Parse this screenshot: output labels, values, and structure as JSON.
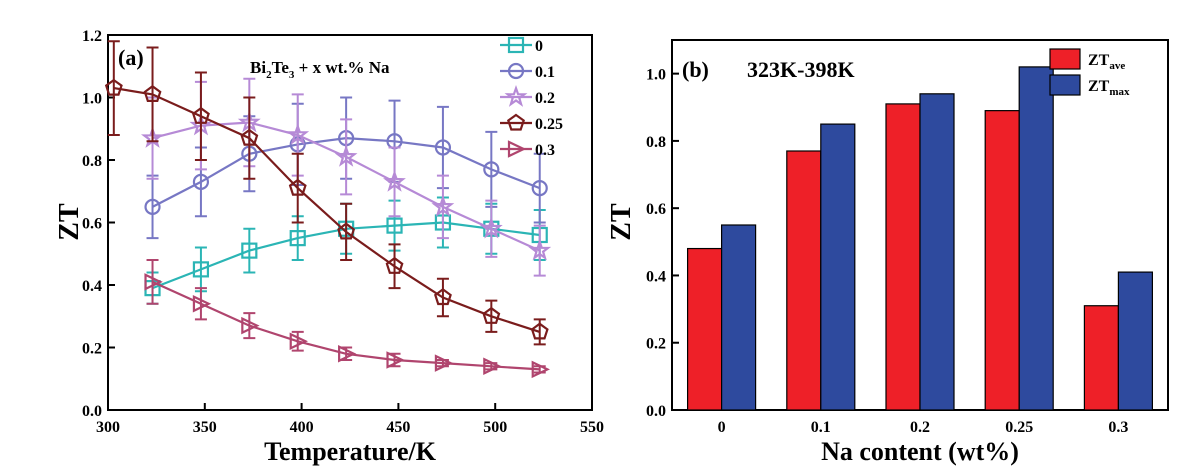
{
  "chart_data": [
    {
      "type": "line",
      "panel_label": "(a)",
      "annotation": {
        "base": "Bi",
        "sub1": "2",
        "mid": "Te",
        "sub2": "3",
        "rest": " + x wt.% Na"
      },
      "xlabel": "Temperature/K",
      "ylabel": "ZT",
      "xlim": [
        300,
        550
      ],
      "ylim": [
        0.0,
        1.2
      ],
      "xticks": [
        "300",
        "350",
        "400",
        "450",
        "500",
        "550"
      ],
      "yticks": [
        "0.0",
        "0.2",
        "0.4",
        "0.6",
        "0.8",
        "1.0",
        "1.2"
      ],
      "legend_position": "top-right",
      "series": [
        {
          "name": "0",
          "marker": "square",
          "color": "#2bb5b5",
          "x": [
            323,
            348,
            373,
            398,
            423,
            448,
            473,
            498,
            523
          ],
          "y": [
            0.39,
            0.45,
            0.51,
            0.55,
            0.58,
            0.59,
            0.6,
            0.58,
            0.56
          ],
          "err": [
            0.05,
            0.07,
            0.07,
            0.07,
            0.08,
            0.08,
            0.08,
            0.08,
            0.08
          ]
        },
        {
          "name": "0.1",
          "marker": "circle",
          "color": "#7777c4",
          "x": [
            323,
            348,
            373,
            398,
            423,
            448,
            473,
            498,
            523
          ],
          "y": [
            0.65,
            0.73,
            0.82,
            0.85,
            0.87,
            0.86,
            0.84,
            0.77,
            0.71
          ],
          "err": [
            0.1,
            0.11,
            0.12,
            0.13,
            0.13,
            0.13,
            0.13,
            0.12,
            0.11
          ]
        },
        {
          "name": "0.2",
          "marker": "star",
          "color": "#b68ad6",
          "x": [
            323,
            348,
            373,
            398,
            423,
            448,
            473,
            498,
            523
          ],
          "y": [
            0.87,
            0.91,
            0.92,
            0.88,
            0.81,
            0.73,
            0.65,
            0.58,
            0.51
          ],
          "err": [
            0.13,
            0.14,
            0.14,
            0.13,
            0.12,
            0.11,
            0.1,
            0.09,
            0.08
          ]
        },
        {
          "name": "0.25",
          "marker": "pentagon",
          "color": "#7a1c1c",
          "x": [
            303,
            323,
            348,
            373,
            398,
            423,
            448,
            473,
            498,
            523
          ],
          "y": [
            1.03,
            1.01,
            0.94,
            0.87,
            0.71,
            0.57,
            0.46,
            0.36,
            0.3,
            0.25
          ],
          "err": [
            0.15,
            0.15,
            0.14,
            0.13,
            0.11,
            0.09,
            0.07,
            0.06,
            0.05,
            0.04
          ]
        },
        {
          "name": "0.3",
          "marker": "triangle-right",
          "color": "#b0456e",
          "x": [
            323,
            348,
            373,
            398,
            423,
            448,
            473,
            498,
            523
          ],
          "y": [
            0.41,
            0.34,
            0.27,
            0.22,
            0.18,
            0.16,
            0.15,
            0.14,
            0.13
          ],
          "err": [
            0.07,
            0.05,
            0.04,
            0.03,
            0.02,
            0.02,
            0.01,
            0.01,
            0.01
          ]
        }
      ]
    },
    {
      "type": "bar",
      "panel_label": "(b)",
      "annotation": "323K-398K",
      "xlabel": "Na content (wt%)",
      "ylabel": "ZT",
      "ylim": [
        0.0,
        1.1
      ],
      "yticks": [
        "0.0",
        "0.2",
        "0.4",
        "0.6",
        "0.8",
        "1.0"
      ],
      "categories": [
        "0",
        "0.1",
        "0.2",
        "0.25",
        "0.3"
      ],
      "legend_position": "top-right",
      "series": [
        {
          "name": "ZT",
          "sub": "ave",
          "color": "#ee2028",
          "values": [
            0.48,
            0.77,
            0.91,
            0.89,
            0.31
          ]
        },
        {
          "name": "ZT",
          "sub": "max",
          "color": "#2e4a9e",
          "values": [
            0.55,
            0.85,
            0.94,
            1.02,
            0.41
          ]
        }
      ]
    }
  ]
}
